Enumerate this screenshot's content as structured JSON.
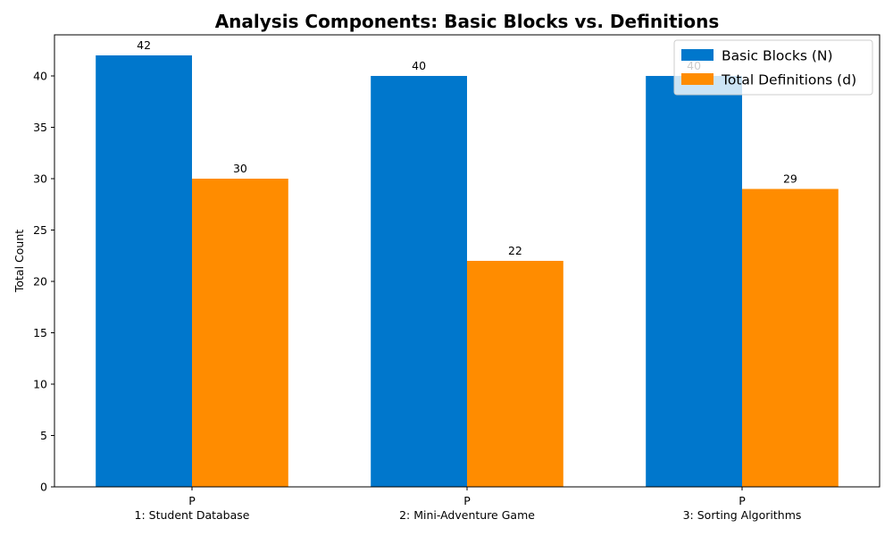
{
  "chart_data": {
    "type": "bar",
    "title": "Analysis Components: Basic Blocks vs. Definitions",
    "xlabel": "",
    "ylabel": "Total Count",
    "ylim": [
      0,
      44
    ],
    "yticks": [
      0,
      5,
      10,
      15,
      20,
      25,
      30,
      35,
      40
    ],
    "categories": [
      [
        "P",
        "1: Student Database"
      ],
      [
        "P",
        "2: Mini-Adventure Game"
      ],
      [
        "P",
        "3: Sorting Algorithms"
      ]
    ],
    "series": [
      {
        "name": "Basic Blocks (N)",
        "color": "#0077CC",
        "values": [
          42,
          40,
          40
        ]
      },
      {
        "name": "Total Definitions (d)",
        "color": "#FF8C00",
        "values": [
          30,
          22,
          29
        ]
      }
    ],
    "legend": "top-right",
    "grid": false
  }
}
